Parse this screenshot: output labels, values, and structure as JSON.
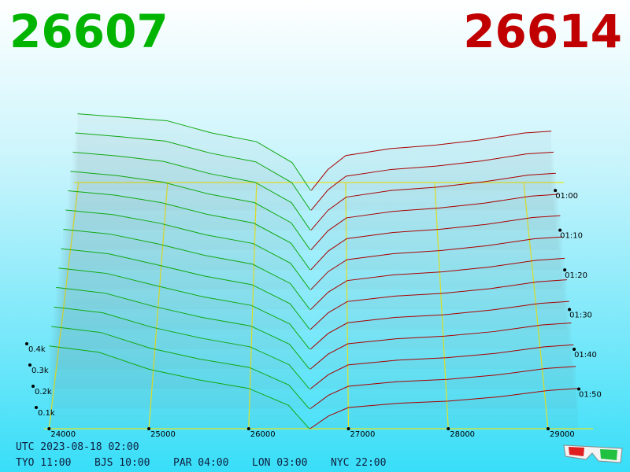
{
  "chart_data": {
    "type": "depth3d",
    "bid_price_title": "26607",
    "ask_price_title": "26614",
    "bid_color": "#12a812",
    "ask_color": "#a80000",
    "bid_prices": [
      24000,
      24500,
      25000,
      25500,
      26000,
      26400,
      26607
    ],
    "ask_prices": [
      26614,
      26800,
      27000,
      27500,
      28000,
      28500,
      29000,
      29300
    ],
    "snapshots": [
      {
        "time": "01:00",
        "bids": [
          440,
          420,
          400,
          330,
          280,
          160,
          0
        ],
        "asks": [
          0,
          120,
          200,
          240,
          260,
          290,
          330,
          340
        ]
      },
      {
        "time": "01:05",
        "bids": [
          436,
          415,
          390,
          322,
          273,
          156,
          0
        ],
        "asks": [
          0,
          115,
          192,
          230,
          249,
          278,
          318,
          328
        ]
      },
      {
        "time": "01:10",
        "bids": [
          432,
          410,
          380,
          313,
          265,
          152,
          0
        ],
        "asks": [
          0,
          110,
          183,
          220,
          238,
          267,
          305,
          315
        ]
      },
      {
        "time": "01:15",
        "bids": [
          428,
          405,
          370,
          305,
          258,
          148,
          0
        ],
        "asks": [
          0,
          105,
          175,
          210,
          228,
          255,
          293,
          303
        ]
      },
      {
        "time": "01:20",
        "bids": [
          423,
          400,
          360,
          297,
          250,
          143,
          0
        ],
        "asks": [
          0,
          100,
          167,
          200,
          217,
          243,
          280,
          290
        ]
      },
      {
        "time": "01:25",
        "bids": [
          419,
          395,
          350,
          288,
          243,
          139,
          0
        ],
        "asks": [
          0,
          95,
          158,
          190,
          206,
          232,
          268,
          278
        ]
      },
      {
        "time": "01:30",
        "bids": [
          415,
          390,
          340,
          280,
          235,
          135,
          0
        ],
        "asks": [
          0,
          90,
          150,
          180,
          195,
          220,
          255,
          265
        ]
      },
      {
        "time": "01:35",
        "bids": [
          411,
          385,
          330,
          272,
          228,
          131,
          0
        ],
        "asks": [
          0,
          85,
          142,
          170,
          184,
          208,
          243,
          253
        ]
      },
      {
        "time": "01:40",
        "bids": [
          407,
          380,
          320,
          263,
          220,
          127,
          0
        ],
        "asks": [
          0,
          80,
          133,
          160,
          173,
          197,
          230,
          240
        ]
      },
      {
        "time": "01:45",
        "bids": [
          403,
          375,
          310,
          255,
          213,
          123,
          0
        ],
        "asks": [
          0,
          75,
          125,
          150,
          163,
          185,
          218,
          228
        ]
      },
      {
        "time": "01:50",
        "bids": [
          398,
          370,
          300,
          247,
          205,
          118,
          0
        ],
        "asks": [
          0,
          70,
          117,
          140,
          152,
          173,
          205,
          215
        ]
      },
      {
        "time": "01:55",
        "bids": [
          394,
          365,
          290,
          238,
          198,
          114,
          0
        ],
        "asks": [
          0,
          65,
          108,
          130,
          141,
          162,
          193,
          203
        ]
      },
      {
        "time": "02:00",
        "bids": [
          390,
          360,
          280,
          230,
          190,
          110,
          0
        ],
        "asks": [
          0,
          60,
          100,
          120,
          130,
          150,
          180,
          190
        ]
      }
    ],
    "xlim": [
      23950,
      29450
    ],
    "xticks": [
      24000,
      25000,
      26000,
      27000,
      28000,
      29000
    ],
    "ylim": [
      0,
      500
    ],
    "yticks": [
      {
        "value": 100,
        "label": "0.1k"
      },
      {
        "value": 200,
        "label": "0.2k"
      },
      {
        "value": 300,
        "label": "0.3k"
      },
      {
        "value": 400,
        "label": "0.4k"
      }
    ],
    "zlim": [
      "00:58",
      "02:00"
    ],
    "zticks": [
      "01:00",
      "01:10",
      "01:20",
      "01:30",
      "01:40",
      "01:50"
    ],
    "footer": {
      "utc": "UTC 2023-08-18 02:00",
      "zones": [
        "TYO 11:00",
        "BJS 10:00",
        "PAR 04:00",
        "LON 03:00",
        "NYC 22:00"
      ]
    }
  }
}
